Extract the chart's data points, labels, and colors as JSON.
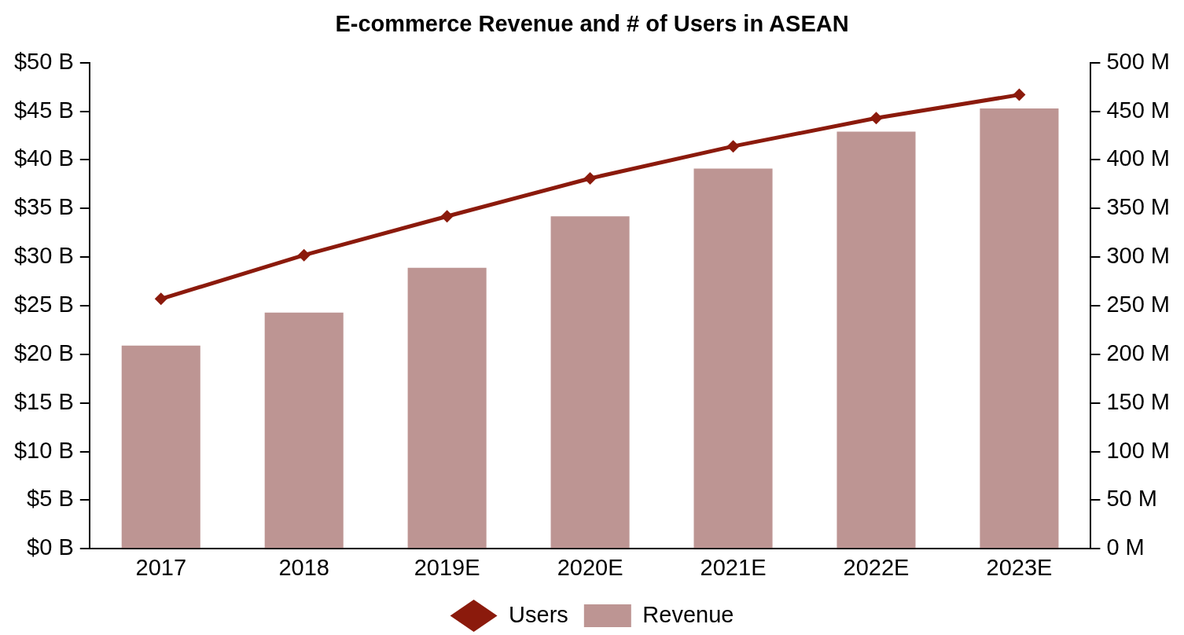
{
  "chart_data": {
    "type": "bar",
    "title": "E-commerce Revenue and # of Users in ASEAN",
    "categories": [
      "2017",
      "2018",
      "2019E",
      "2020E",
      "2021E",
      "2022E",
      "2023E"
    ],
    "series": [
      {
        "name": "Users",
        "type": "line",
        "axis": "y2",
        "color": "#8b1a0c",
        "marker": "diamond",
        "values": [
          257,
          302,
          342,
          381,
          414,
          443,
          467
        ]
      },
      {
        "name": "Revenue",
        "color": "#bd9593",
        "values": [
          20.9,
          24.3,
          28.9,
          34.2,
          39.1,
          42.9,
          45.3
        ]
      }
    ],
    "ylim": [
      0,
      50
    ],
    "yticks": [
      {
        "value": 0,
        "label": "$0 B"
      },
      {
        "value": 5,
        "label": "$5 B"
      },
      {
        "value": 10,
        "label": "$10 B"
      },
      {
        "value": 15,
        "label": "$15 B"
      },
      {
        "value": 20,
        "label": "$20 B"
      },
      {
        "value": 25,
        "label": "$25 B"
      },
      {
        "value": 30,
        "label": "$30 B"
      },
      {
        "value": 35,
        "label": "$35 B"
      },
      {
        "value": 40,
        "label": "$40 B"
      },
      {
        "value": 45,
        "label": "$45 B"
      },
      {
        "value": 50,
        "label": "$50 B"
      }
    ],
    "y2lim": [
      0,
      500
    ],
    "y2ticks": [
      {
        "value": 0,
        "label": "0 M"
      },
      {
        "value": 50,
        "label": "50 M"
      },
      {
        "value": 100,
        "label": "100 M"
      },
      {
        "value": 150,
        "label": "150 M"
      },
      {
        "value": 200,
        "label": "200 M"
      },
      {
        "value": 250,
        "label": "250 M"
      },
      {
        "value": 300,
        "label": "300 M"
      },
      {
        "value": 350,
        "label": "350 M"
      },
      {
        "value": 400,
        "label": "400 M"
      },
      {
        "value": 450,
        "label": "450 M"
      },
      {
        "value": 500,
        "label": "500 M"
      }
    ],
    "grid": false,
    "legend": "bottom"
  }
}
